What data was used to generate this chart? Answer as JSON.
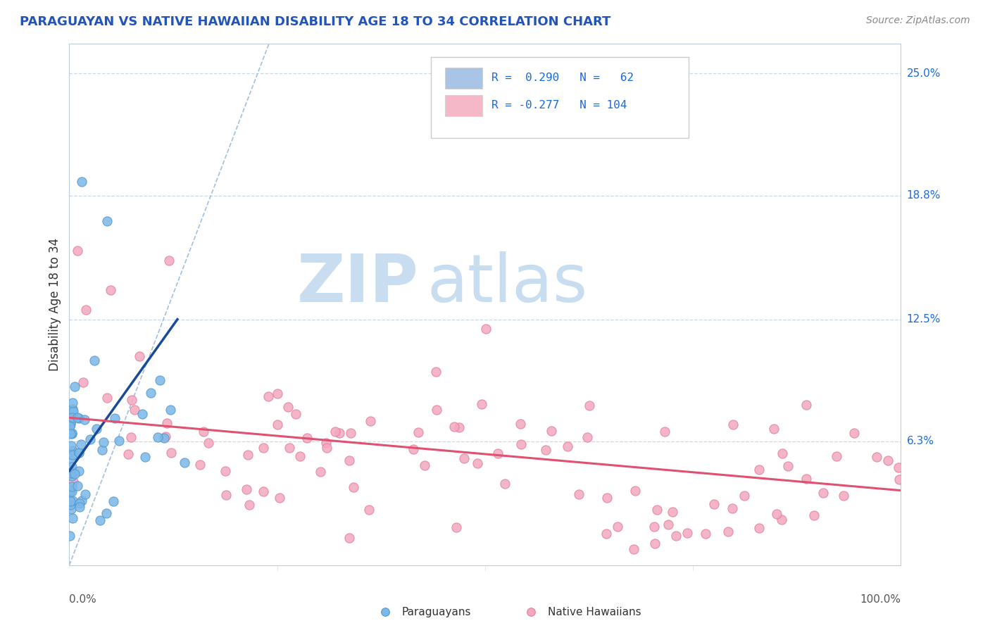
{
  "title": "PARAGUAYAN VS NATIVE HAWAIIAN DISABILITY AGE 18 TO 34 CORRELATION CHART",
  "source": "Source: ZipAtlas.com",
  "ylabel": "Disability Age 18 to 34",
  "xmin": 0.0,
  "xmax": 1.0,
  "ymin": 0.0,
  "ymax": 0.265,
  "ytick_vals": [
    0.063,
    0.125,
    0.188,
    0.25
  ],
  "ytick_labels": [
    "6.3%",
    "12.5%",
    "18.8%",
    "25.0%"
  ],
  "paraguayan_color": "#7bb8e8",
  "paraguayan_edge": "#5599cc",
  "native_hawaiian_color": "#f4a8c0",
  "native_hawaiian_edge": "#e0809a",
  "paraguayan_trend_color": "#1a4a9a",
  "native_hawaiian_trend_color": "#e05070",
  "ref_line_color": "#a0c0e0",
  "grid_color": "#c8d8e8",
  "watermark_zip_color": "#c8ddf0",
  "watermark_atlas_color": "#c8ddf0",
  "legend_blue_color": "#aac4e8",
  "legend_pink_color": "#f4b8c8",
  "legend_text_color": "#1a6adc",
  "paraguayan_R": 0.29,
  "paraguayan_N": 62,
  "native_hawaiian_R": -0.277,
  "native_hawaiian_N": 104,
  "par_trend_x0": 0.0,
  "par_trend_x1": 0.13,
  "par_trend_y0": 0.048,
  "par_trend_y1": 0.125,
  "nh_trend_x0": 0.0,
  "nh_trend_x1": 1.0,
  "nh_trend_y0": 0.075,
  "nh_trend_y1": 0.038,
  "ref_line_x0": 0.0,
  "ref_line_x1": 0.24,
  "ref_line_y0": 0.0,
  "ref_line_y1": 0.265
}
